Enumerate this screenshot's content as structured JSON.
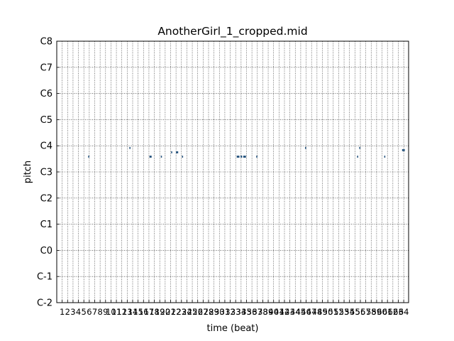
{
  "chart_data": {
    "type": "scatter",
    "title": "AnotherGirl_1_cropped.mid",
    "xlabel": "time (beat)",
    "ylabel": "pitch",
    "xlim": [
      0.0,
      64.9
    ],
    "ylim": [
      0,
      120
    ],
    "x_ticks": [
      1,
      2,
      3,
      4,
      5,
      6,
      7,
      8,
      9,
      10,
      11,
      12,
      13,
      14,
      15,
      16,
      17,
      18,
      19,
      20,
      21,
      22,
      23,
      24,
      25,
      26,
      27,
      28,
      29,
      30,
      31,
      32,
      33,
      34,
      35,
      36,
      37,
      38,
      39,
      40,
      41,
      42,
      43,
      44,
      45,
      46,
      47,
      48,
      49,
      50,
      51,
      52,
      53,
      54,
      55,
      56,
      57,
      58,
      59,
      60,
      61,
      62,
      63,
      64
    ],
    "y_ticks": [
      {
        "value": 0,
        "label": "C-2"
      },
      {
        "value": 12,
        "label": "C-1"
      },
      {
        "value": 24,
        "label": "C0"
      },
      {
        "value": 36,
        "label": "C1"
      },
      {
        "value": 48,
        "label": "C2"
      },
      {
        "value": 60,
        "label": "C3"
      },
      {
        "value": 72,
        "label": "C4"
      },
      {
        "value": 84,
        "label": "C5"
      },
      {
        "value": 96,
        "label": "C6"
      },
      {
        "value": 108,
        "label": "C7"
      },
      {
        "value": 120,
        "label": "C8"
      }
    ],
    "grid": true,
    "note_color": "#1f4e79",
    "notes": [
      {
        "start": 5.8,
        "end": 6.0,
        "pitch": 67
      },
      {
        "start": 13.4,
        "end": 13.6,
        "pitch": 71
      },
      {
        "start": 17.1,
        "end": 17.5,
        "pitch": 67
      },
      {
        "start": 19.2,
        "end": 19.4,
        "pitch": 67
      },
      {
        "start": 21.1,
        "end": 21.3,
        "pitch": 69
      },
      {
        "start": 22.0,
        "end": 22.4,
        "pitch": 69
      },
      {
        "start": 23.1,
        "end": 23.3,
        "pitch": 67
      },
      {
        "start": 33.2,
        "end": 33.7,
        "pitch": 67
      },
      {
        "start": 33.9,
        "end": 34.2,
        "pitch": 67
      },
      {
        "start": 34.4,
        "end": 34.9,
        "pitch": 67
      },
      {
        "start": 36.8,
        "end": 37.0,
        "pitch": 67
      },
      {
        "start": 45.8,
        "end": 46.0,
        "pitch": 71
      },
      {
        "start": 55.4,
        "end": 55.6,
        "pitch": 67
      },
      {
        "start": 55.8,
        "end": 56.0,
        "pitch": 71
      },
      {
        "start": 60.4,
        "end": 60.6,
        "pitch": 67
      },
      {
        "start": 63.7,
        "end": 64.2,
        "pitch": 70
      }
    ]
  }
}
